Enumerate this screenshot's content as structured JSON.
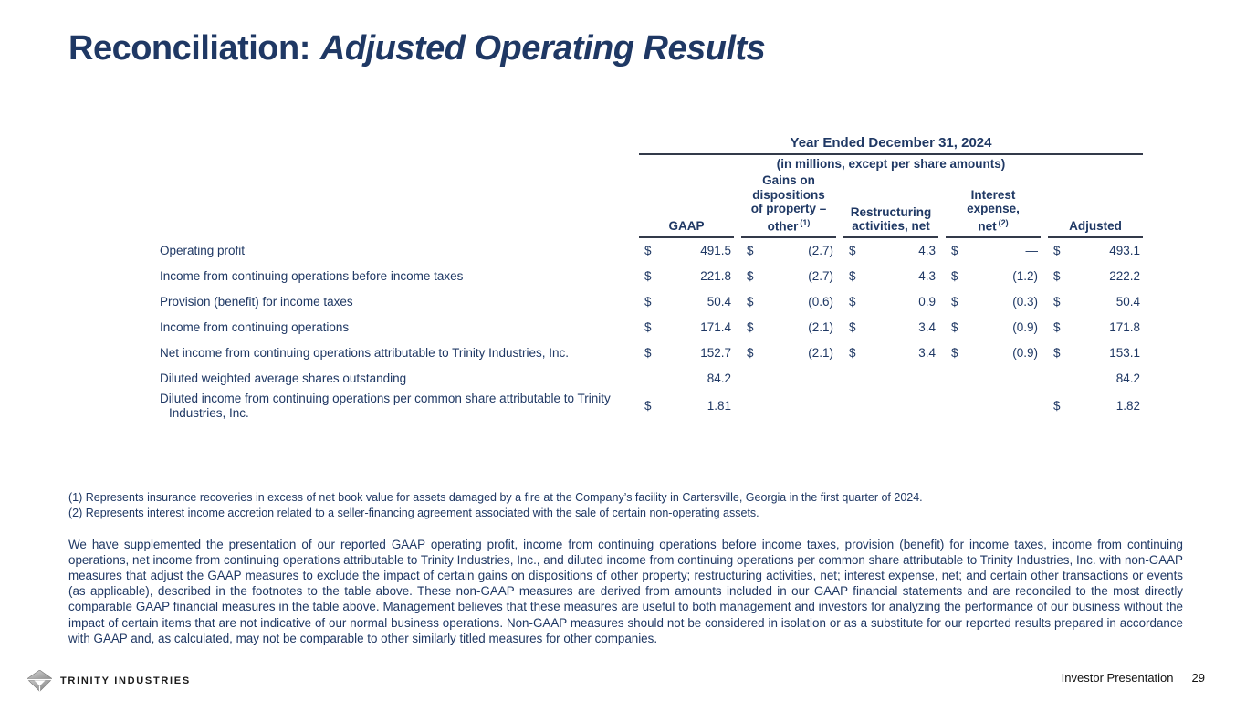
{
  "title": {
    "prefix": "Reconciliation:",
    "emphasis": "Adjusted Operating Results"
  },
  "table": {
    "period_header": "Year Ended December 31, 2024",
    "units_note": "(in millions, except per share amounts)",
    "columns": [
      {
        "lines": [
          "GAAP"
        ],
        "sup": ""
      },
      {
        "lines": [
          "Gains on",
          "dispositions",
          "of property –",
          "other"
        ],
        "sup": "(1)"
      },
      {
        "lines": [
          "Restructuring",
          "activities, net"
        ],
        "sup": ""
      },
      {
        "lines": [
          "Interest",
          "expense,",
          "net"
        ],
        "sup": "(2)"
      },
      {
        "lines": [
          "Adjusted"
        ],
        "sup": ""
      }
    ],
    "rows": [
      {
        "label": "Operating profit",
        "cells": [
          {
            "d": "$",
            "v": "491.5"
          },
          {
            "d": "$",
            "v": "(2.7)"
          },
          {
            "d": "$",
            "v": "4.3"
          },
          {
            "d": "$",
            "v": "—"
          },
          {
            "d": "$",
            "v": "493.1"
          }
        ]
      },
      {
        "label": "Income from continuing operations before income taxes",
        "cells": [
          {
            "d": "$",
            "v": "221.8"
          },
          {
            "d": "$",
            "v": "(2.7)"
          },
          {
            "d": "$",
            "v": "4.3"
          },
          {
            "d": "$",
            "v": "(1.2)"
          },
          {
            "d": "$",
            "v": "222.2"
          }
        ]
      },
      {
        "label": "Provision (benefit) for income taxes",
        "cells": [
          {
            "d": "$",
            "v": "50.4"
          },
          {
            "d": "$",
            "v": "(0.6)"
          },
          {
            "d": "$",
            "v": "0.9"
          },
          {
            "d": "$",
            "v": "(0.3)"
          },
          {
            "d": "$",
            "v": "50.4"
          }
        ]
      },
      {
        "label": "Income from continuing operations",
        "cells": [
          {
            "d": "$",
            "v": "171.4"
          },
          {
            "d": "$",
            "v": "(2.1)"
          },
          {
            "d": "$",
            "v": "3.4"
          },
          {
            "d": "$",
            "v": "(0.9)"
          },
          {
            "d": "$",
            "v": "171.8"
          }
        ]
      },
      {
        "label": "Net income from continuing operations attributable to Trinity Industries, Inc.",
        "cells": [
          {
            "d": "$",
            "v": "152.7"
          },
          {
            "d": "$",
            "v": "(2.1)"
          },
          {
            "d": "$",
            "v": "3.4"
          },
          {
            "d": "$",
            "v": "(0.9)"
          },
          {
            "d": "$",
            "v": "153.1"
          }
        ]
      },
      {
        "label": "Diluted weighted average shares outstanding",
        "cells": [
          {
            "d": "",
            "v": "84.2"
          },
          {
            "d": "",
            "v": ""
          },
          {
            "d": "",
            "v": ""
          },
          {
            "d": "",
            "v": ""
          },
          {
            "d": "",
            "v": "84.2"
          }
        ]
      },
      {
        "label": "Diluted income from continuing operations per common share attributable to Trinity Industries, Inc.",
        "cells": [
          {
            "d": "$",
            "v": "1.81"
          },
          {
            "d": "",
            "v": ""
          },
          {
            "d": "",
            "v": ""
          },
          {
            "d": "",
            "v": ""
          },
          {
            "d": "$",
            "v": "1.82"
          }
        ]
      }
    ]
  },
  "footnotes": [
    "(1) Represents insurance recoveries in excess of net book value for assets damaged by a fire at the Company’s facility in Cartersville, Georgia in the first quarter of 2024.",
    "(2) Represents interest income accretion related to a seller-financing agreement associated with the sale of certain non-operating assets."
  ],
  "body_paragraph": "We have supplemented the presentation of our reported GAAP operating profit, income from continuing operations before income taxes, provision (benefit) for income taxes, income from continuing operations, net income from continuing operations attributable to Trinity Industries, Inc., and diluted income from continuing operations per common share attributable to Trinity Industries, Inc. with non-GAAP measures that adjust the GAAP measures to exclude the impact of certain gains on dispositions of other property; restructuring activities, net; interest expense, net; and certain other transactions or events (as applicable), described in the footnotes to the table above. These non-GAAP measures are derived from amounts included in our GAAP financial statements and are reconciled to the most directly comparable GAAP financial measures in the table above. Management believes that these measures are useful to both management and investors for analyzing the performance of our business without the impact of certain items that are not indicative of our normal business operations. Non-GAAP measures should not be considered in isolation or as a substitute for our reported results prepared in accordance with GAAP and, as calculated, may not be comparable to other similarly titled measures for other companies.",
  "footer": {
    "logo_text": "TRINITY INDUSTRIES",
    "right_label": "Investor Presentation",
    "page_number": "29"
  },
  "colors": {
    "text_navy": "#1f3864",
    "rule_dark": "#333a4a",
    "footer_text": "#1a1a1a",
    "logo_gray_light": "#c6c6c6",
    "logo_gray_dark": "#8f8f8f"
  }
}
